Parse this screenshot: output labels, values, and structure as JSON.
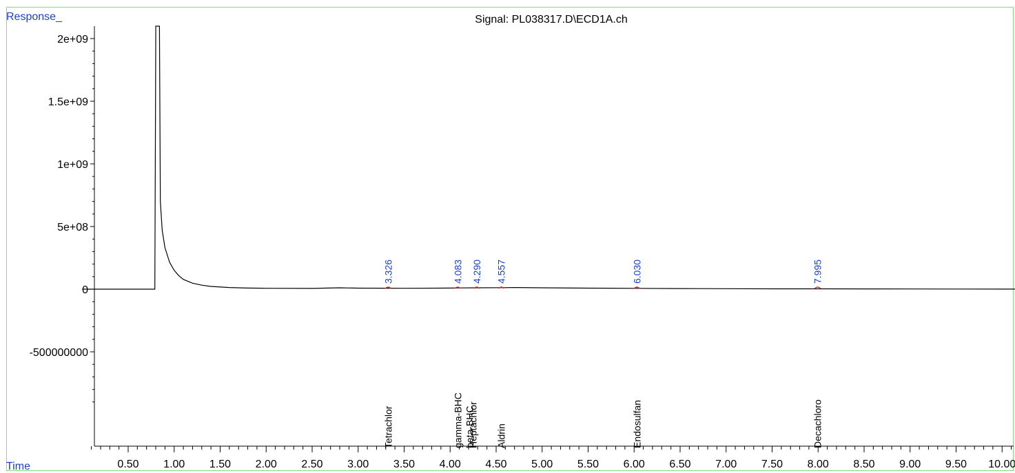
{
  "chart_data": {
    "type": "line",
    "title": "Signal: PL038317.D\\ECD1A.ch",
    "ylabel": "Response_",
    "xlabel": "Time",
    "xlim": [
      0.0,
      10.33
    ],
    "ylim": [
      -1050000000,
      2150000000
    ],
    "y_ticks": [
      {
        "value": 2000000000,
        "label": "2e+09"
      },
      {
        "value": 1500000000,
        "label": "1.5e+09"
      },
      {
        "value": 1000000000,
        "label": "1e+09"
      },
      {
        "value": 500000000,
        "label": "5e+08"
      },
      {
        "value": 0,
        "label": "0"
      },
      {
        "value": -500000000,
        "label": "-500000000"
      }
    ],
    "x_ticks": [
      "0.50",
      "1.00",
      "1.50",
      "2.00",
      "2.50",
      "3.00",
      "3.50",
      "4.00",
      "4.50",
      "5.00",
      "5.50",
      "6.00",
      "6.50",
      "7.00",
      "7.50",
      "8.00",
      "8.50",
      "9.00",
      "9.50",
      "10.00"
    ],
    "series": [
      {
        "color": "#000000",
        "points": [
          [
            0.0,
            0
          ],
          [
            0.79,
            0
          ],
          [
            0.8,
            2150000000
          ],
          [
            0.84,
            2150000000
          ],
          [
            0.85,
            700000000
          ],
          [
            0.87,
            470000000
          ],
          [
            0.9,
            330000000
          ],
          [
            0.95,
            215000000
          ],
          [
            1.0,
            150000000
          ],
          [
            1.05,
            108000000
          ],
          [
            1.1,
            78000000
          ],
          [
            1.2,
            48000000
          ],
          [
            1.3,
            32000000
          ],
          [
            1.4,
            22000000
          ],
          [
            1.6,
            13000000
          ],
          [
            1.8,
            9000000
          ],
          [
            2.0,
            7000000
          ],
          [
            2.5,
            6000000
          ],
          [
            2.8,
            11000000
          ],
          [
            3.0,
            8000000
          ],
          [
            3.326,
            7500000
          ],
          [
            3.5,
            7000000
          ],
          [
            4.0,
            9000000
          ],
          [
            4.083,
            10000000
          ],
          [
            4.29,
            11000000
          ],
          [
            4.557,
            12000000
          ],
          [
            4.7,
            13000000
          ],
          [
            5.0,
            11000000
          ],
          [
            5.5,
            8000000
          ],
          [
            6.03,
            6500000
          ],
          [
            6.5,
            5000000
          ],
          [
            7.0,
            4000000
          ],
          [
            7.5,
            3000000
          ],
          [
            7.995,
            2500000
          ],
          [
            8.5,
            2000000
          ],
          [
            9.0,
            1500000
          ],
          [
            9.5,
            1000000
          ],
          [
            10.0,
            600000
          ],
          [
            10.33,
            400000
          ]
        ]
      }
    ],
    "peak_labels": [
      {
        "time": 3.326,
        "label": "3.326"
      },
      {
        "time": 4.083,
        "label": "4.083"
      },
      {
        "time": 4.29,
        "label": "4.290"
      },
      {
        "time": 4.557,
        "label": "4.557"
      },
      {
        "time": 6.03,
        "label": "6.030"
      },
      {
        "time": 7.995,
        "label": "7.995"
      }
    ],
    "compound_labels": [
      {
        "time": 3.326,
        "label": "Tetrachlor"
      },
      {
        "time": 4.083,
        "label": "gamma-BHC"
      },
      {
        "time": 4.21,
        "label": "beta-BHC"
      },
      {
        "time": 4.25,
        "label": "Heptachlor"
      },
      {
        "time": 4.557,
        "label": "Aldrin"
      },
      {
        "time": 6.03,
        "label": "Endosulfan"
      },
      {
        "time": 7.995,
        "label": "Decachloro"
      }
    ],
    "colors": {
      "axis": "#000000",
      "peak_label": "#1a3fd6",
      "peak_marker": "#e02020",
      "frame": "#7fe07f",
      "corner_text": "#1a3fd6"
    }
  }
}
